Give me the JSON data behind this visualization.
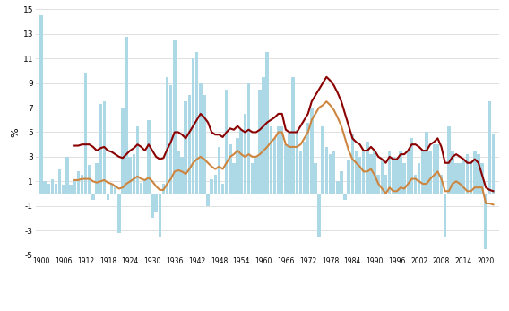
{
  "years": [
    1900,
    1901,
    1902,
    1903,
    1904,
    1905,
    1906,
    1907,
    1908,
    1909,
    1910,
    1911,
    1912,
    1913,
    1914,
    1915,
    1916,
    1917,
    1918,
    1919,
    1920,
    1921,
    1922,
    1923,
    1924,
    1925,
    1926,
    1927,
    1928,
    1929,
    1930,
    1931,
    1932,
    1933,
    1934,
    1935,
    1936,
    1937,
    1938,
    1939,
    1940,
    1941,
    1942,
    1943,
    1944,
    1945,
    1946,
    1947,
    1948,
    1949,
    1950,
    1951,
    1952,
    1953,
    1954,
    1955,
    1956,
    1957,
    1958,
    1959,
    1960,
    1961,
    1962,
    1963,
    1964,
    1965,
    1966,
    1967,
    1968,
    1969,
    1970,
    1971,
    1972,
    1973,
    1974,
    1975,
    1976,
    1977,
    1978,
    1979,
    1980,
    1981,
    1982,
    1983,
    1984,
    1985,
    1986,
    1987,
    1988,
    1989,
    1990,
    1991,
    1992,
    1993,
    1994,
    1995,
    1996,
    1997,
    1998,
    1999,
    2000,
    2001,
    2002,
    2003,
    2004,
    2005,
    2006,
    2007,
    2008,
    2009,
    2010,
    2011,
    2012,
    2013,
    2014,
    2015,
    2016,
    2017,
    2018,
    2019,
    2020,
    2021,
    2022
  ],
  "pib_anual": [
    14.5,
    1.0,
    0.8,
    1.2,
    0.8,
    2.0,
    0.7,
    3.0,
    0.7,
    1.2,
    1.8,
    1.5,
    9.8,
    2.3,
    -0.5,
    2.5,
    7.3,
    7.5,
    -0.5,
    0.8,
    0.6,
    -3.2,
    7.0,
    12.8,
    3.0,
    3.2,
    5.5,
    0.9,
    1.2,
    6.0,
    -2.0,
    -1.5,
    -3.5,
    0.8,
    9.5,
    8.8,
    12.5,
    3.5,
    3.0,
    7.5,
    8.0,
    11.0,
    11.5,
    9.0,
    8.0,
    -1.0,
    1.2,
    1.5,
    3.8,
    0.8,
    8.5,
    4.0,
    2.5,
    4.5,
    5.2,
    6.5,
    9.0,
    2.5,
    3.0,
    8.5,
    9.5,
    11.5,
    5.5,
    4.5,
    5.5,
    5.5,
    4.0,
    5.0,
    9.5,
    5.2,
    3.5,
    4.2,
    5.8,
    7.0,
    2.5,
    -3.5,
    5.5,
    3.8,
    3.2,
    3.5,
    1.0,
    1.8,
    -0.5,
    2.8,
    4.8,
    3.5,
    3.0,
    3.5,
    4.2,
    3.2,
    3.5,
    1.5,
    2.8,
    1.5,
    3.5,
    3.0,
    2.8,
    3.5,
    2.5,
    3.5,
    4.5,
    1.5,
    2.5,
    3.5,
    5.0,
    3.5,
    4.0,
    4.0,
    1.5,
    -3.5,
    5.5,
    3.5,
    2.5,
    2.5,
    2.8,
    3.2,
    2.5,
    3.5,
    3.2,
    2.5,
    -4.5,
    7.5,
    4.8
  ],
  "pib_media_decenal": [
    null,
    null,
    null,
    null,
    null,
    null,
    null,
    null,
    null,
    3.9,
    3.9,
    4.0,
    4.0,
    4.0,
    3.8,
    3.5,
    3.7,
    3.8,
    3.5,
    3.4,
    3.2,
    3.0,
    2.9,
    3.2,
    3.5,
    3.7,
    4.0,
    3.8,
    3.5,
    4.0,
    3.5,
    3.0,
    2.8,
    2.9,
    3.6,
    4.2,
    5.0,
    5.0,
    4.8,
    4.5,
    5.0,
    5.5,
    6.0,
    6.5,
    6.2,
    5.8,
    5.0,
    4.8,
    4.8,
    4.6,
    5.0,
    5.3,
    5.2,
    5.5,
    5.2,
    5.0,
    5.2,
    5.0,
    5.0,
    5.2,
    5.5,
    5.8,
    6.0,
    6.2,
    6.5,
    6.5,
    5.2,
    5.0,
    5.0,
    5.0,
    5.5,
    6.0,
    6.5,
    7.5,
    8.0,
    8.5,
    9.0,
    9.5,
    9.2,
    8.8,
    8.2,
    7.5,
    6.5,
    5.5,
    4.5,
    4.2,
    4.0,
    3.5,
    3.5,
    3.8,
    3.5,
    3.0,
    2.8,
    2.5,
    3.0,
    2.8,
    2.8,
    3.2,
    3.2,
    3.5,
    4.0,
    4.0,
    3.8,
    3.5,
    3.5,
    4.0,
    4.2,
    4.5,
    3.8,
    2.5,
    2.5,
    3.0,
    3.2,
    3.0,
    2.8,
    2.5,
    2.5,
    2.8,
    2.5,
    1.5,
    0.5,
    0.3,
    0.2
  ],
  "pib_per_capita_decenal": [
    null,
    null,
    null,
    null,
    null,
    null,
    null,
    null,
    null,
    1.1,
    1.1,
    1.2,
    1.2,
    1.2,
    1.0,
    0.9,
    1.0,
    1.1,
    0.9,
    0.8,
    0.6,
    0.4,
    0.5,
    0.8,
    1.0,
    1.2,
    1.4,
    1.2,
    1.1,
    1.3,
    1.0,
    0.6,
    0.3,
    0.3,
    0.8,
    1.2,
    1.8,
    1.9,
    1.8,
    1.6,
    2.0,
    2.5,
    2.8,
    3.0,
    2.8,
    2.5,
    2.2,
    2.0,
    2.2,
    2.0,
    2.5,
    3.0,
    3.2,
    3.5,
    3.2,
    3.0,
    3.2,
    3.0,
    3.0,
    3.2,
    3.5,
    3.8,
    4.2,
    4.5,
    5.0,
    5.0,
    4.0,
    3.8,
    3.8,
    3.8,
    4.0,
    4.5,
    5.0,
    6.0,
    6.5,
    7.0,
    7.2,
    7.5,
    7.2,
    6.8,
    6.2,
    5.5,
    4.5,
    3.5,
    2.8,
    2.5,
    2.2,
    1.8,
    1.8,
    2.0,
    1.5,
    0.8,
    0.4,
    0.0,
    0.5,
    0.2,
    0.2,
    0.5,
    0.4,
    0.8,
    1.2,
    1.2,
    1.0,
    0.8,
    0.8,
    1.2,
    1.5,
    1.8,
    1.2,
    0.2,
    0.2,
    0.8,
    1.0,
    0.8,
    0.5,
    0.2,
    0.2,
    0.5,
    0.5,
    0.5,
    -0.8,
    -0.8,
    -0.9
  ],
  "bar_color": "#add8e6",
  "line_color_pib": "#8b0000",
  "line_color_per_capita": "#cd853f",
  "ylabel": "%",
  "ylim": [
    -5,
    15
  ],
  "yticks": [
    -5,
    -3,
    -1,
    1,
    3,
    5,
    7,
    9,
    11,
    13,
    15
  ],
  "xtick_years": [
    1900,
    1906,
    1912,
    1918,
    1924,
    1930,
    1936,
    1942,
    1948,
    1954,
    1960,
    1966,
    1972,
    1978,
    1984,
    1990,
    1996,
    2002,
    2008,
    2014,
    2020
  ],
  "background_color": "#ffffff",
  "grid_color": "#d3d3d3"
}
